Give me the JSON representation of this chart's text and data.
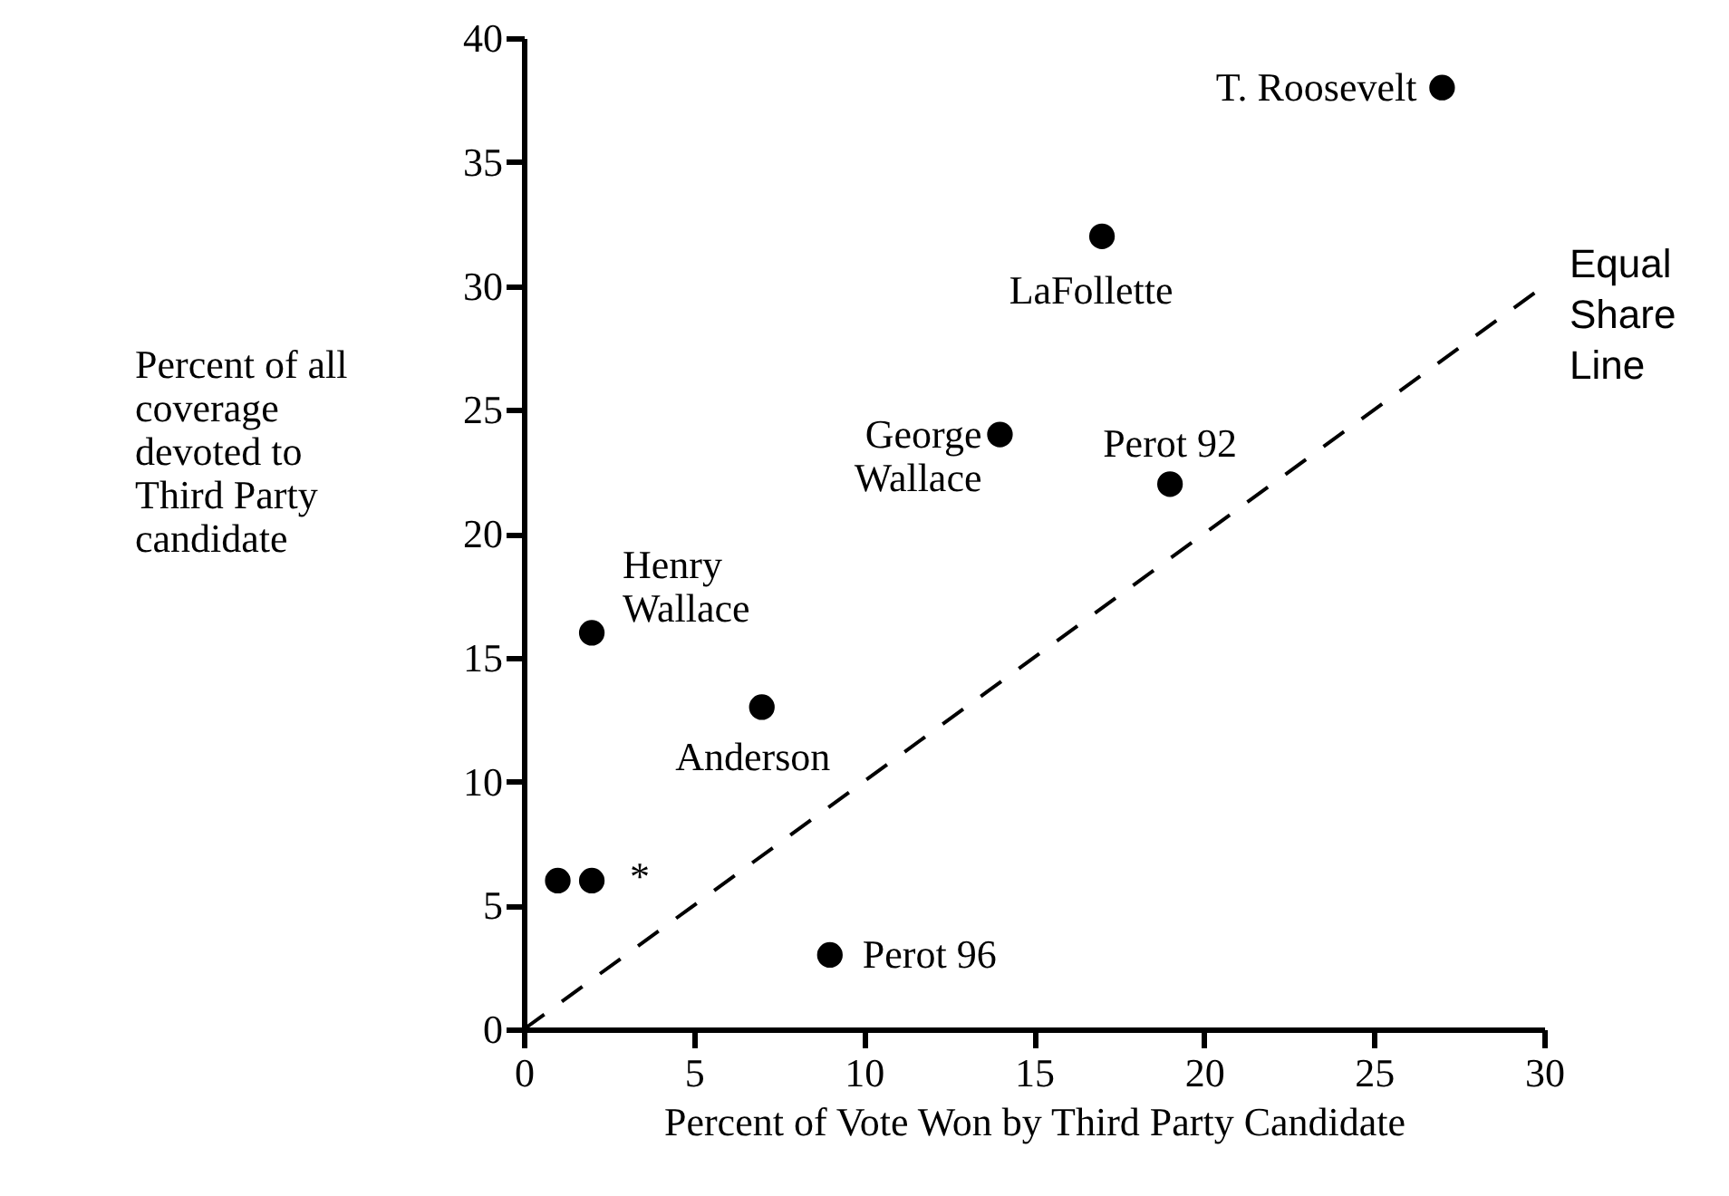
{
  "chart_data": {
    "type": "scatter",
    "xlabel": "Percent of Vote Won by Third Party Candidate",
    "ylabel": "Percent of all coverage devoted to Third Party candidate",
    "xlim": [
      0,
      30
    ],
    "xticks": [
      0,
      5,
      10,
      15,
      20,
      25,
      30
    ],
    "ylim": [
      0,
      40
    ],
    "yticks": [
      0,
      5,
      10,
      15,
      20,
      25,
      30,
      35,
      40
    ],
    "grid": false,
    "series": [
      {
        "name": "Equal Share Line",
        "type": "line",
        "x": [
          0,
          30
        ],
        "values": [
          0,
          30
        ],
        "color": "#000000",
        "line_style": "dashed",
        "marker": "none"
      },
      {
        "x": [
          27,
          17,
          14,
          19,
          2,
          7,
          1,
          2,
          9
        ],
        "values": [
          38,
          32,
          24,
          22,
          16,
          13,
          6,
          6,
          3
        ],
        "color": "#000000",
        "marker": "circle"
      }
    ],
    "annotations": [
      {
        "text": "T. Roosevelt",
        "x": 27,
        "y": 38
      },
      {
        "text": "LaFollette",
        "x": 17,
        "y": 32
      },
      {
        "text": "George Wallace",
        "x": 14,
        "y": 24
      },
      {
        "text": "Perot 92",
        "x": 19,
        "y": 22
      },
      {
        "text": "Henry Wallace",
        "x": 2,
        "y": 16
      },
      {
        "text": "Anderson",
        "x": 7,
        "y": 13
      },
      {
        "text": "*",
        "x": 2,
        "y": 6
      },
      {
        "text": "Perot 96",
        "x": 9,
        "y": 3
      }
    ]
  }
}
